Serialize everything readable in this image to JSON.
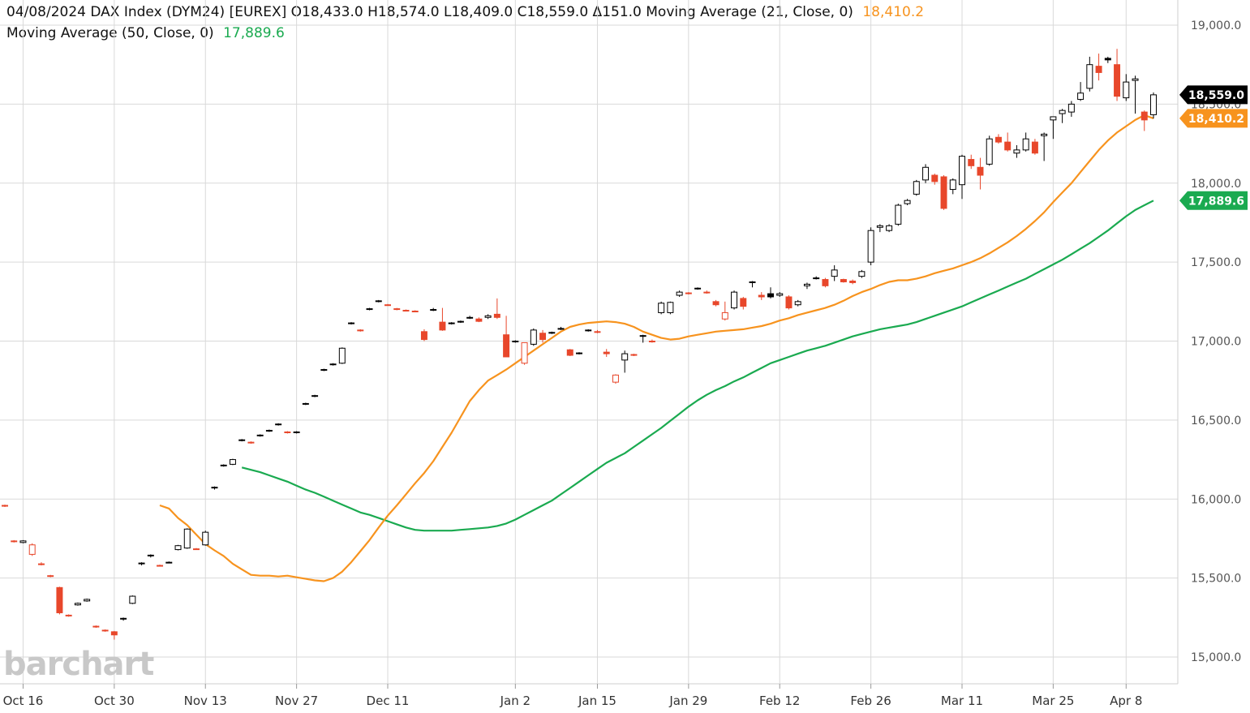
{
  "header": {
    "line1_main": "04/08/2024 DAX Index (DYM24) [EUREX] O18,433.0 H18,574.0 L18,409.0 C18,559.0 Δ151.0 Moving Average  (21, Close, 0)",
    "ma21_value": "18,410.2",
    "line2_main": "Moving Average  (50, Close, 0)",
    "ma50_value": "17,889.6"
  },
  "logo": "barchart",
  "colors": {
    "up": "#000000",
    "down": "#e8472b",
    "ma21": "#f7931e",
    "ma50": "#1aaa50",
    "grid": "#d9d9d9",
    "last_tag": "#000000"
  },
  "price_tags": [
    {
      "label": "18,559.0",
      "value": 18559.0,
      "color": "#000000"
    },
    {
      "label": "18,410.2",
      "value": 18410.2,
      "color": "#f7931e"
    },
    {
      "label": "17,889.6",
      "value": 17889.6,
      "color": "#1aaa50"
    }
  ],
  "chart_data": {
    "type": "candlestick",
    "symbol": "DYM24",
    "ylim": [
      14800,
      19100
    ],
    "y_ticks": [
      "15,000.0",
      "15,500.0",
      "16,000.0",
      "16,500.0",
      "17,000.0",
      "17,500.0",
      "18,000.0",
      "18,500.0",
      "19,000.0"
    ],
    "y_tick_values": [
      15000,
      15500,
      16000,
      16500,
      17000,
      17500,
      18000,
      18500,
      19000
    ],
    "x_ticks": [
      {
        "label": "Oct 16",
        "idx": 2
      },
      {
        "label": "Oct 30",
        "idx": 12
      },
      {
        "label": "Nov 13",
        "idx": 22
      },
      {
        "label": "Nov 27",
        "idx": 32
      },
      {
        "label": "Dec 11",
        "idx": 42
      },
      {
        "label": "Jan 2",
        "idx": 56
      },
      {
        "label": "Jan 15",
        "idx": 65
      },
      {
        "label": "Jan 29",
        "idx": 75
      },
      {
        "label": "Feb 12",
        "idx": 85
      },
      {
        "label": "Feb 26",
        "idx": 95
      },
      {
        "label": "Mar 11",
        "idx": 105
      },
      {
        "label": "Mar 25",
        "idx": 115
      },
      {
        "label": "Apr 8",
        "idx": 123
      }
    ],
    "candles": [
      [
        15960,
        15965,
        15950,
        15955
      ],
      [
        15735,
        15740,
        15725,
        15730
      ],
      [
        15725,
        15740,
        15720,
        15735
      ],
      [
        15650,
        15720,
        15640,
        15710
      ],
      [
        15590,
        15600,
        15580,
        15585
      ],
      [
        15515,
        15520,
        15505,
        15510
      ],
      [
        15440,
        15445,
        15270,
        15280
      ],
      [
        15265,
        15270,
        15255,
        15260
      ],
      [
        15330,
        15345,
        15325,
        15340
      ],
      [
        15355,
        15370,
        15350,
        15365
      ],
      [
        15195,
        15200,
        15185,
        15190
      ],
      [
        15165,
        15175,
        15160,
        15170
      ],
      [
        15160,
        15165,
        15110,
        15140
      ],
      [
        15240,
        15250,
        15230,
        15245
      ],
      [
        15340,
        15390,
        15335,
        15385
      ],
      [
        15590,
        15600,
        15580,
        15595
      ],
      [
        15640,
        15650,
        15630,
        15645
      ],
      [
        15580,
        15585,
        15575,
        15580
      ],
      [
        15600,
        15605,
        15595,
        15600
      ],
      [
        15680,
        15710,
        15675,
        15705
      ],
      [
        15690,
        15815,
        15685,
        15810
      ],
      [
        15685,
        15690,
        15680,
        15685
      ],
      [
        15710,
        15800,
        15705,
        15790
      ],
      [
        16070,
        16080,
        16060,
        16075
      ],
      [
        16210,
        16220,
        16205,
        16215
      ],
      [
        16220,
        16255,
        16215,
        16250
      ],
      [
        16370,
        16380,
        16365,
        16375
      ],
      [
        16360,
        16365,
        16350,
        16355
      ],
      [
        16400,
        16410,
        16395,
        16405
      ],
      [
        16430,
        16440,
        16425,
        16435
      ],
      [
        16470,
        16480,
        16465,
        16475
      ],
      [
        16425,
        16430,
        16415,
        16420
      ],
      [
        16420,
        16430,
        16415,
        16425
      ],
      [
        16600,
        16610,
        16595,
        16605
      ],
      [
        16650,
        16660,
        16645,
        16655
      ],
      [
        16815,
        16825,
        16810,
        16820
      ],
      [
        16850,
        16860,
        16845,
        16855
      ],
      [
        16860,
        16960,
        16855,
        16955
      ],
      [
        17110,
        17120,
        17105,
        17115
      ],
      [
        17070,
        17075,
        17060,
        17065
      ],
      [
        17200,
        17210,
        17195,
        17205
      ],
      [
        17250,
        17260,
        17245,
        17255
      ],
      [
        17230,
        17235,
        17225,
        17230
      ],
      [
        17200,
        17210,
        17195,
        17205
      ],
      [
        17195,
        17200,
        17190,
        17195
      ],
      [
        17190,
        17195,
        17185,
        17190
      ],
      [
        17060,
        17075,
        17000,
        17010
      ],
      [
        17200,
        17210,
        17190,
        17195
      ],
      [
        17120,
        17210,
        17065,
        17070
      ],
      [
        17110,
        17120,
        17105,
        17115
      ],
      [
        17120,
        17130,
        17115,
        17125
      ],
      [
        17150,
        17160,
        17140,
        17145
      ],
      [
        17140,
        17150,
        17120,
        17125
      ],
      [
        17150,
        17170,
        17140,
        17160
      ],
      [
        17170,
        17270,
        17140,
        17150
      ],
      [
        17040,
        17160,
        16900,
        16900
      ],
      [
        16995,
        17005,
        16990,
        17000
      ],
      [
        16860,
        16990,
        16850,
        16990
      ],
      [
        16980,
        17080,
        16970,
        17070
      ],
      [
        17050,
        17070,
        16990,
        17010
      ],
      [
        17050,
        17060,
        17045,
        17055
      ],
      [
        17080,
        17090,
        17070,
        17075
      ],
      [
        16945,
        16950,
        16905,
        16910
      ],
      [
        16920,
        16930,
        16915,
        16925
      ],
      [
        17070,
        17075,
        17060,
        17070
      ],
      [
        17060,
        17070,
        17050,
        17055
      ],
      [
        16930,
        16950,
        16900,
        16920
      ],
      [
        16740,
        16790,
        16730,
        16785
      ],
      [
        16880,
        16940,
        16800,
        16920
      ],
      [
        16910,
        16920,
        16905,
        16915
      ],
      [
        17030,
        17040,
        16990,
        17035
      ],
      [
        17000,
        17010,
        16990,
        16995
      ],
      [
        17180,
        17250,
        17170,
        17240
      ],
      [
        17180,
        17250,
        17170,
        17245
      ],
      [
        17290,
        17320,
        17280,
        17310
      ],
      [
        17300,
        17310,
        17295,
        17305
      ],
      [
        17330,
        17340,
        17325,
        17335
      ],
      [
        17310,
        17320,
        17300,
        17305
      ],
      [
        17250,
        17260,
        17220,
        17230
      ],
      [
        17140,
        17250,
        17130,
        17180
      ],
      [
        17210,
        17320,
        17200,
        17310
      ],
      [
        17270,
        17280,
        17200,
        17220
      ],
      [
        17370,
        17380,
        17340,
        17375
      ],
      [
        17290,
        17310,
        17260,
        17280
      ],
      [
        17300,
        17340,
        17270,
        17280
      ],
      [
        17290,
        17310,
        17280,
        17300
      ],
      [
        17280,
        17290,
        17200,
        17210
      ],
      [
        17230,
        17260,
        17220,
        17250
      ],
      [
        17350,
        17370,
        17330,
        17360
      ],
      [
        17400,
        17410,
        17390,
        17395
      ],
      [
        17390,
        17400,
        17340,
        17350
      ],
      [
        17410,
        17480,
        17380,
        17450
      ],
      [
        17390,
        17395,
        17370,
        17375
      ],
      [
        17380,
        17390,
        17360,
        17370
      ],
      [
        17410,
        17450,
        17400,
        17440
      ],
      [
        17500,
        17720,
        17480,
        17700
      ],
      [
        17720,
        17740,
        17690,
        17730
      ],
      [
        17700,
        17740,
        17690,
        17730
      ],
      [
        17740,
        17870,
        17730,
        17860
      ],
      [
        17870,
        17900,
        17860,
        17890
      ],
      [
        17930,
        18020,
        17920,
        18010
      ],
      [
        18020,
        18120,
        18000,
        18100
      ],
      [
        18050,
        18060,
        17990,
        18010
      ],
      [
        18040,
        18050,
        17830,
        17840
      ],
      [
        17960,
        18030,
        17930,
        18020
      ],
      [
        17990,
        18180,
        17900,
        18170
      ],
      [
        18150,
        18180,
        18090,
        18110
      ],
      [
        18100,
        18160,
        17960,
        18050
      ],
      [
        18120,
        18300,
        18110,
        18280
      ],
      [
        18290,
        18310,
        18250,
        18260
      ],
      [
        18260,
        18320,
        18200,
        18210
      ],
      [
        18190,
        18240,
        18160,
        18210
      ],
      [
        18210,
        18320,
        18200,
        18280
      ],
      [
        18260,
        18280,
        18180,
        18190
      ],
      [
        18300,
        18320,
        18140,
        18310
      ],
      [
        18400,
        18420,
        18280,
        18420
      ],
      [
        18440,
        18470,
        18380,
        18460
      ],
      [
        18450,
        18520,
        18420,
        18500
      ],
      [
        18530,
        18640,
        18520,
        18570
      ],
      [
        18600,
        18800,
        18580,
        18750
      ],
      [
        18740,
        18820,
        18650,
        18700
      ],
      [
        18790,
        18800,
        18760,
        18780
      ],
      [
        18750,
        18850,
        18520,
        18550
      ],
      [
        18540,
        18690,
        18520,
        18640
      ],
      [
        18650,
        18680,
        18440,
        18660
      ],
      [
        18450,
        18460,
        18330,
        18400
      ],
      [
        18433,
        18574,
        18409,
        18559
      ]
    ],
    "series": [
      {
        "name": "Moving Average  (21, Close, 0)",
        "color": "#f7931e",
        "values": [
          15960,
          15940,
          15880,
          15835,
          15775,
          15715,
          15675,
          15640,
          15590,
          15555,
          15520,
          15515,
          15515,
          15510,
          15515,
          15505,
          15495,
          15485,
          15480,
          15500,
          15540,
          15600,
          15670,
          15740,
          15820,
          15895,
          15960,
          16030,
          16100,
          16165,
          16240,
          16330,
          16420,
          16520,
          16620,
          16690,
          16750,
          16785,
          16820,
          16860,
          16900,
          16940,
          16980,
          17020,
          17060,
          17090,
          17105,
          17115,
          17120,
          17125,
          17120,
          17110,
          17090,
          17060,
          17040,
          17020,
          17010,
          17015,
          17030,
          17040,
          17050,
          17060,
          17065,
          17070,
          17075,
          17085,
          17095,
          17110,
          17130,
          17145,
          17165,
          17180,
          17195,
          17210,
          17230,
          17255,
          17285,
          17310,
          17330,
          17355,
          17375,
          17385,
          17385,
          17395,
          17410,
          17430,
          17445,
          17460,
          17480,
          17500,
          17525,
          17555,
          17590,
          17625,
          17665,
          17710,
          17760,
          17815,
          17880,
          17940,
          18000,
          18070,
          18140,
          18210,
          18270,
          18320,
          18360,
          18400,
          18430,
          18410.2
        ]
      },
      {
        "name": "Moving Average  (50, Close, 0)",
        "color": "#1aaa50",
        "values": [
          16200,
          16185,
          16170,
          16150,
          16130,
          16110,
          16085,
          16060,
          16040,
          16015,
          15990,
          15965,
          15940,
          15915,
          15900,
          15880,
          15860,
          15840,
          15820,
          15805,
          15800,
          15800,
          15800,
          15800,
          15805,
          15810,
          15815,
          15820,
          15830,
          15845,
          15870,
          15900,
          15930,
          15960,
          15990,
          16030,
          16070,
          16110,
          16150,
          16190,
          16230,
          16260,
          16290,
          16330,
          16370,
          16410,
          16450,
          16495,
          16540,
          16585,
          16625,
          16660,
          16690,
          16715,
          16745,
          16770,
          16800,
          16830,
          16860,
          16880,
          16900,
          16920,
          16940,
          16955,
          16970,
          16990,
          17010,
          17030,
          17045,
          17060,
          17075,
          17085,
          17095,
          17105,
          17120,
          17140,
          17160,
          17180,
          17200,
          17220,
          17245,
          17270,
          17295,
          17320,
          17345,
          17370,
          17395,
          17425,
          17455,
          17485,
          17515,
          17550,
          17585,
          17620,
          17660,
          17700,
          17745,
          17790,
          17830,
          17860,
          17889.6
        ]
      }
    ]
  }
}
